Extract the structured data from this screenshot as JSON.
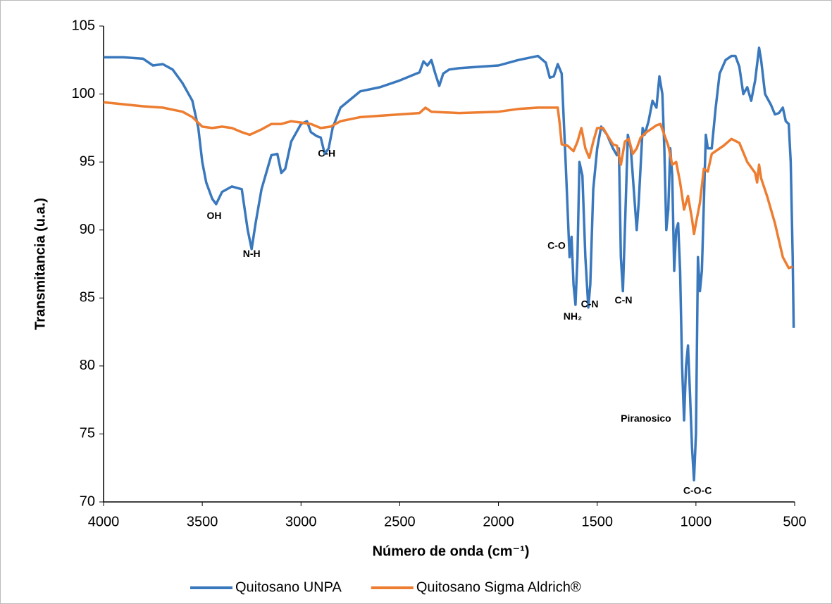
{
  "chart_data": {
    "type": "line",
    "x_label": "Número de onda (cm⁻¹)",
    "y_label": "Transmitancia (u.a.)",
    "xlim": [
      4000,
      500
    ],
    "xticks": [
      4000,
      3500,
      3000,
      2500,
      2000,
      1500,
      1000,
      500
    ],
    "ylim": [
      70,
      105
    ],
    "yticks": [
      70,
      75,
      80,
      85,
      90,
      95,
      100,
      105
    ],
    "legend": "bottom",
    "series": [
      {
        "name": "Quitosano UNPA",
        "color": "#3a78bd",
        "x": [
          4000,
          3900,
          3800,
          3750,
          3700,
          3650,
          3600,
          3550,
          3520,
          3500,
          3480,
          3450,
          3430,
          3400,
          3350,
          3300,
          3270,
          3250,
          3230,
          3200,
          3150,
          3120,
          3100,
          3080,
          3050,
          3000,
          2970,
          2950,
          2920,
          2900,
          2880,
          2860,
          2840,
          2800,
          2700,
          2600,
          2500,
          2400,
          2380,
          2360,
          2340,
          2320,
          2300,
          2280,
          2250,
          2200,
          2100,
          2000,
          1900,
          1800,
          1760,
          1740,
          1720,
          1700,
          1680,
          1660,
          1640,
          1630,
          1620,
          1610,
          1600,
          1590,
          1575,
          1560,
          1545,
          1535,
          1520,
          1500,
          1480,
          1450,
          1420,
          1400,
          1390,
          1380,
          1370,
          1360,
          1345,
          1330,
          1310,
          1300,
          1290,
          1270,
          1260,
          1240,
          1220,
          1200,
          1185,
          1170,
          1160,
          1150,
          1140,
          1130,
          1120,
          1110,
          1100,
          1090,
          1080,
          1070,
          1060,
          1050,
          1040,
          1030,
          1020,
          1010,
          1000,
          990,
          980,
          970,
          960,
          950,
          940,
          920,
          900,
          880,
          850,
          820,
          800,
          780,
          760,
          740,
          720,
          700,
          680,
          670,
          650,
          620,
          600,
          580,
          560,
          545,
          530,
          520,
          510,
          505
        ],
        "values": [
          102.7,
          102.7,
          102.6,
          102.1,
          102.2,
          101.8,
          100.8,
          99.5,
          97.5,
          95,
          93.5,
          92.3,
          91.9,
          92.8,
          93.2,
          93,
          90,
          88.6,
          90.5,
          93,
          95.5,
          95.6,
          94.2,
          94.5,
          96.5,
          97.8,
          98,
          97.2,
          96.9,
          96.8,
          95.6,
          96,
          97.5,
          99,
          100.2,
          100.5,
          101,
          101.6,
          102.4,
          102.1,
          102.5,
          101.5,
          100.6,
          101.5,
          101.8,
          101.9,
          102,
          102.1,
          102.5,
          102.8,
          102.3,
          101.2,
          101.3,
          102.2,
          101.5,
          95,
          88,
          89.5,
          86,
          84.5,
          88,
          95,
          94,
          88,
          84.3,
          86,
          93,
          96,
          97.6,
          97,
          96,
          95.5,
          96,
          88,
          85.5,
          90,
          97,
          96,
          92,
          90,
          92,
          97.5,
          97,
          98,
          99.5,
          99,
          101.3,
          100,
          96,
          90,
          91.5,
          96,
          94,
          87,
          90,
          90.5,
          87,
          80,
          76,
          80,
          81.5,
          78,
          74,
          71.6,
          75,
          88,
          85.5,
          87,
          92,
          97,
          96,
          96,
          99,
          101.5,
          102.5,
          102.8,
          102.8,
          102,
          100,
          100.5,
          99.5,
          101,
          103.4,
          102.5,
          100,
          99.2,
          98.5,
          98.6,
          99,
          98,
          97.8,
          95,
          88,
          82.8
        ]
      },
      {
        "name": "Quitosano Sigma Aldrich®",
        "color": "#ed7d31",
        "x": [
          4000,
          3800,
          3700,
          3600,
          3550,
          3500,
          3450,
          3400,
          3350,
          3300,
          3260,
          3200,
          3150,
          3100,
          3050,
          3000,
          2950,
          2900,
          2850,
          2800,
          2700,
          2500,
          2400,
          2370,
          2340,
          2200,
          2000,
          1900,
          1800,
          1700,
          1690,
          1680,
          1650,
          1620,
          1600,
          1580,
          1560,
          1540,
          1520,
          1500,
          1470,
          1450,
          1420,
          1400,
          1380,
          1360,
          1340,
          1320,
          1300,
          1280,
          1250,
          1220,
          1200,
          1180,
          1160,
          1140,
          1120,
          1100,
          1080,
          1060,
          1040,
          1020,
          1010,
          1000,
          980,
          960,
          940,
          920,
          900,
          860,
          820,
          780,
          740,
          700,
          690,
          680,
          670,
          640,
          600,
          560,
          530,
          510
        ],
        "values": [
          99.4,
          99.1,
          99,
          98.7,
          98.3,
          97.6,
          97.5,
          97.6,
          97.5,
          97.2,
          97,
          97.4,
          97.8,
          97.8,
          98,
          97.9,
          97.8,
          97.5,
          97.6,
          98,
          98.3,
          98.5,
          98.6,
          99,
          98.7,
          98.6,
          98.7,
          98.9,
          99,
          99,
          97.8,
          96.3,
          96.2,
          95.8,
          96.5,
          97.5,
          96,
          95.3,
          96.5,
          97.5,
          97.5,
          97,
          96.3,
          96.2,
          94.8,
          96.5,
          96.7,
          95.6,
          96,
          96.8,
          97.2,
          97.5,
          97.7,
          97.8,
          97,
          96.2,
          94.8,
          95,
          93.5,
          91.5,
          92.5,
          90.8,
          89.7,
          90.5,
          92,
          94.5,
          94.3,
          95.6,
          95.8,
          96.2,
          96.7,
          96.4,
          95,
          94.2,
          93.5,
          94.8,
          93.8,
          92.5,
          90.5,
          88,
          87.2,
          87.3
        ]
      }
    ],
    "annotations": [
      {
        "text": "OH",
        "x": 3440,
        "y": 91
      },
      {
        "text": "N-H",
        "x": 3250,
        "y": 88.2
      },
      {
        "text": "C-H",
        "x": 2870,
        "y": 95.6
      },
      {
        "text": "C-O",
        "x": 1706,
        "y": 88.8
      },
      {
        "text": "NH₂",
        "x": 1624,
        "y": 83.6
      },
      {
        "text": "C-N",
        "x": 1538,
        "y": 84.5
      },
      {
        "text": "C-N",
        "x": 1367,
        "y": 84.8
      },
      {
        "text": "Piranosico",
        "x": 1253,
        "y": 76.1
      },
      {
        "text": "C-O-C",
        "x": 992,
        "y": 70.8
      }
    ]
  }
}
